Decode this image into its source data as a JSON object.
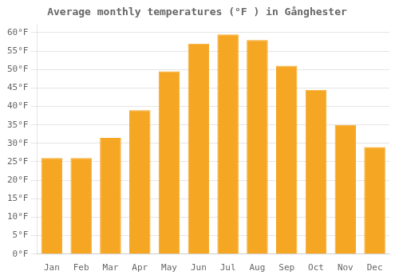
{
  "chart_data": {
    "type": "bar",
    "title": "Average monthly temperatures (°F ) in Gånghester",
    "categories": [
      "Jan",
      "Feb",
      "Mar",
      "Apr",
      "May",
      "Jun",
      "Jul",
      "Aug",
      "Sep",
      "Oct",
      "Nov",
      "Dec"
    ],
    "values": [
      26.0,
      26.0,
      31.5,
      39.0,
      49.5,
      57.0,
      59.5,
      58.0,
      51.0,
      44.5,
      35.0,
      29.0
    ],
    "color": "#F5A623",
    "ylim": [
      0,
      62
    ],
    "yticks": [
      {
        "value": 0,
        "label": "0°F"
      },
      {
        "value": 5,
        "label": "5°F"
      },
      {
        "value": 10,
        "label": "10°F"
      },
      {
        "value": 15,
        "label": "15°F"
      },
      {
        "value": 20,
        "label": "20°F"
      },
      {
        "value": 25,
        "label": "25°F"
      },
      {
        "value": 30,
        "label": "30°F"
      },
      {
        "value": 35,
        "label": "35°F"
      },
      {
        "value": 40,
        "label": "40°F"
      },
      {
        "value": 45,
        "label": "45°F"
      },
      {
        "value": 50,
        "label": "50°F"
      },
      {
        "value": 55,
        "label": "55°F"
      },
      {
        "value": 60,
        "label": "60°F"
      }
    ],
    "grid": true
  }
}
